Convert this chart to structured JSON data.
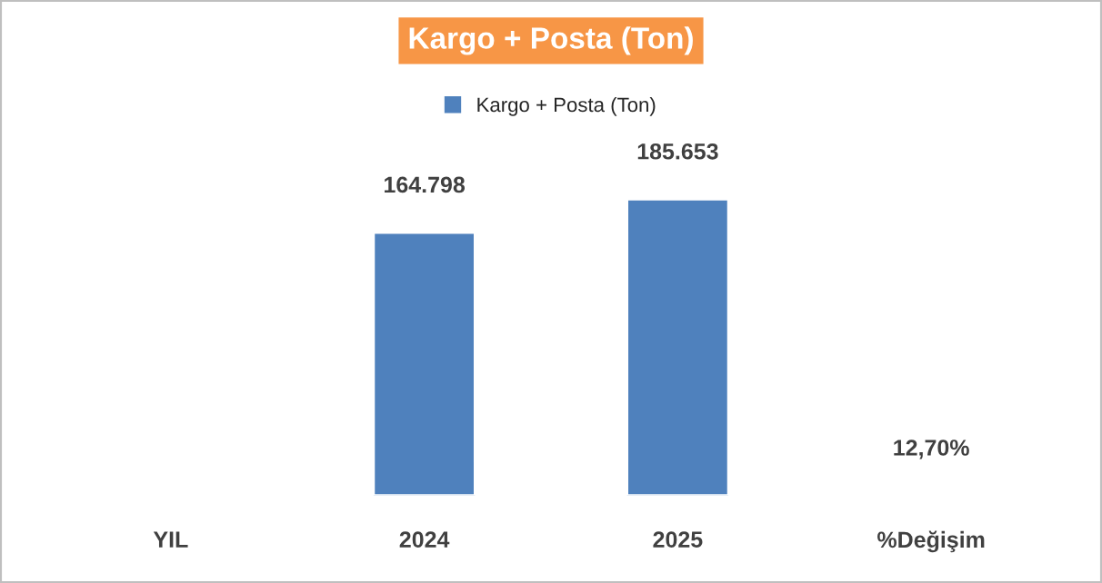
{
  "chart_data": {
    "type": "bar",
    "title": "Kargo + Posta (Ton)",
    "categories": [
      "YIL",
      "2024",
      "2025",
      "%Değişim"
    ],
    "series": [
      {
        "name": "Kargo + Posta (Ton)",
        "color": "#4f81bd",
        "values": [
          null,
          164798,
          185653,
          12.7
        ],
        "value_labels": [
          null,
          "164.798",
          "185.653",
          "12,70%"
        ]
      }
    ],
    "legend": "top",
    "grid": false
  }
}
